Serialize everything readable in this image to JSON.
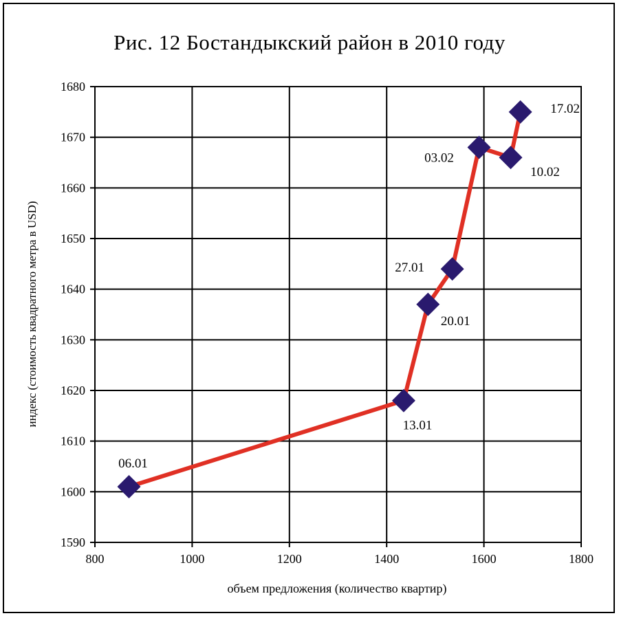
{
  "chart_data": {
    "type": "line",
    "title": "Рис. 12 Бостандыкский район в 2010 году",
    "xlabel": "объем предложения (количество квартир)",
    "ylabel": "индекс (стоимость квадратного метра в USD)",
    "xlim": [
      800,
      1800
    ],
    "ylim": [
      1590,
      1680
    ],
    "x_ticks": [
      800,
      1000,
      1200,
      1400,
      1600,
      1800
    ],
    "y_ticks": [
      1590,
      1600,
      1610,
      1620,
      1630,
      1640,
      1650,
      1660,
      1670,
      1680
    ],
    "grid": true,
    "series": [
      {
        "line_color": "#e03024",
        "marker_color": "#2a1a6e",
        "points": [
          {
            "x": 870,
            "y": 1601,
            "label": "06.01"
          },
          {
            "x": 1435,
            "y": 1618,
            "label": "13.01"
          },
          {
            "x": 1485,
            "y": 1637,
            "label": "20.01"
          },
          {
            "x": 1535,
            "y": 1644,
            "label": "27.01"
          },
          {
            "x": 1590,
            "y": 1668,
            "label": "03.02"
          },
          {
            "x": 1655,
            "y": 1666,
            "label": "10.02"
          },
          {
            "x": 1675,
            "y": 1675,
            "label": "17.02"
          }
        ]
      }
    ]
  }
}
